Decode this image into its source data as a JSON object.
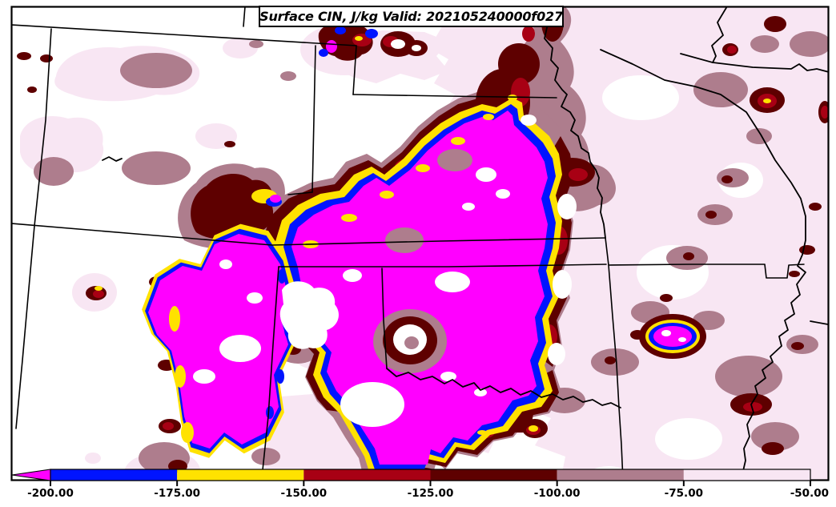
{
  "title": {
    "text": "Surface CIN, J/kg Valid: 202105240000f027"
  },
  "palette": {
    "magenta": "#FF00FF",
    "blue": "#0014FF",
    "yellow": "#FFE200",
    "red": "#A80014",
    "dark_maroon": "#5E0000",
    "mauve": "#AE7D8D",
    "light_pink": "#F8E6F3",
    "background": "#FFFFFF",
    "line": "#000000"
  },
  "colorbar": {
    "orientation": "horizontal",
    "position": "bottom",
    "arrow_color": "#FF00FF",
    "segment_colors": [
      "#0014FF",
      "#FFE200",
      "#A80014",
      "#5E0000",
      "#AE7D8D",
      "#F8E6F3"
    ],
    "tick_labels": [
      "-200.00",
      "-175.00",
      "-150.00",
      "-125.00",
      "-100.00",
      "-75.00",
      "-50.00"
    ]
  },
  "chart_data": {
    "type": "heatmap",
    "subtype": "filled-contour weather map",
    "title": "Surface CIN, J/kg Valid: 202105240000f027",
    "variable": "Surface CIN",
    "units": "J/kg",
    "valid_time": "202105240000",
    "forecast_hour": "f027",
    "legend_position": "bottom",
    "colorbar_levels": [
      -200,
      -175,
      -150,
      -125,
      -100,
      -75,
      -50
    ],
    "colorbar_tick_labels": [
      "-200.00",
      "-175.00",
      "-150.00",
      "-125.00",
      "-100.00",
      "-75.00",
      "-50.00"
    ],
    "bins": [
      {
        "range": "below -200",
        "color": "#FF00FF",
        "meaning": "strongest inhibition (arrow end of scale)"
      },
      {
        "range": "-200 to -175",
        "color": "#0014FF"
      },
      {
        "range": "-175 to -150",
        "color": "#FFE200"
      },
      {
        "range": "-150 to -125",
        "color": "#A80014"
      },
      {
        "range": "-125 to -100",
        "color": "#5E0000"
      },
      {
        "range": "-100 to -75",
        "color": "#AE7D8D"
      },
      {
        "range": "-75 to -50",
        "color": "#F8E6F3"
      },
      {
        "range": "above -50",
        "color": "#FFFFFF"
      }
    ],
    "region": "Central United States (state borders and Missouri/Mississippi/Red river lines drawn in black)",
    "notes": "Large magenta (< -200 J/kg) CIN cores over the Rockies/High Plains and central Kansas-Oklahoma, ringed by blue, yellow, red, dark maroon and mauve contour bands; pale pink weak-CIN field over the eastern half of the map."
  }
}
